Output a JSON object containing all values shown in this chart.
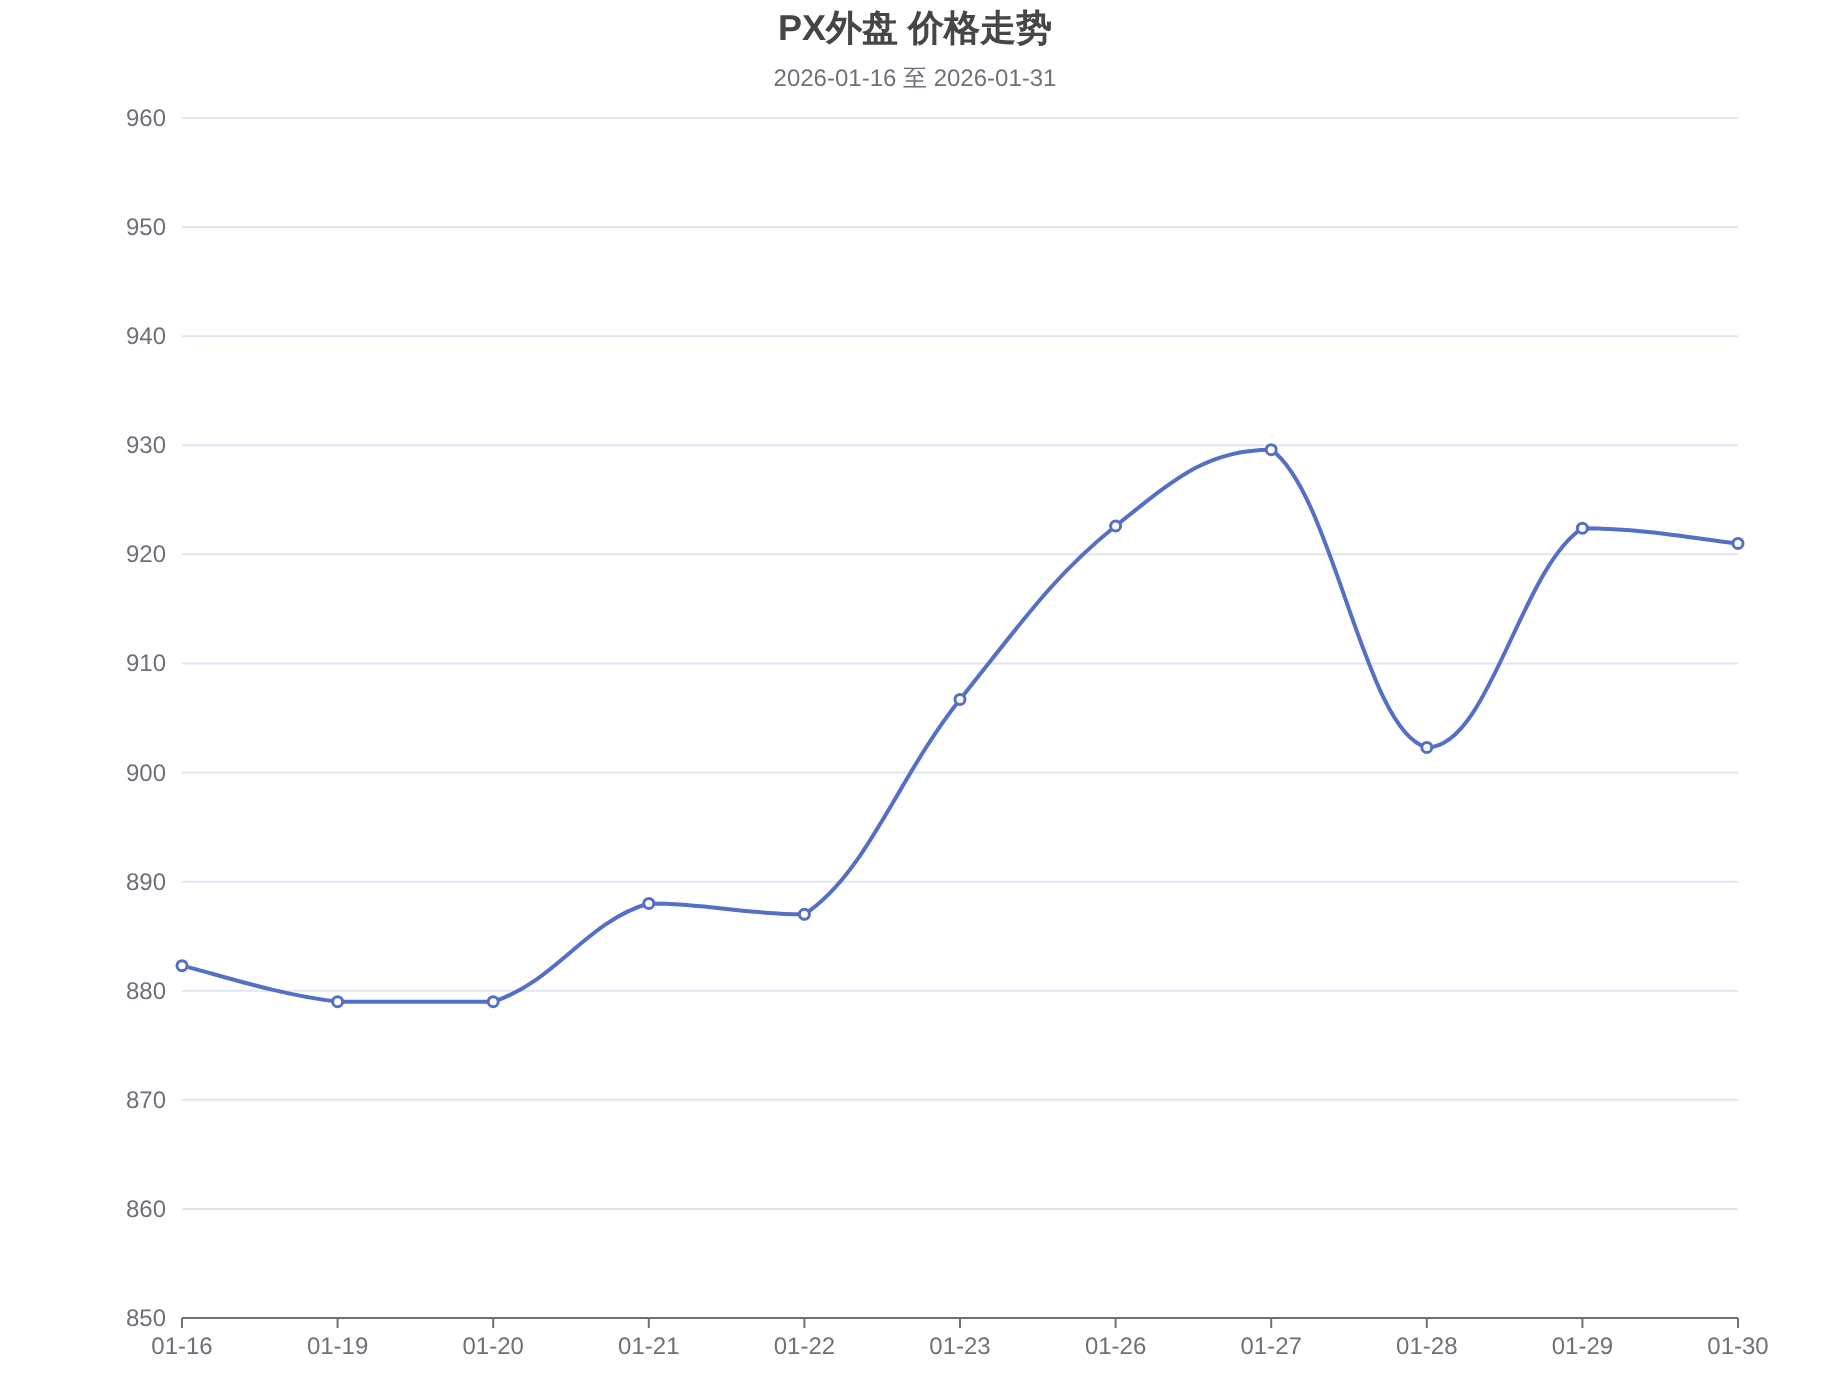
{
  "chart_data": {
    "type": "line",
    "title": "PX外盘 价格走势",
    "subtitle": "2026-01-16 至 2026-01-31",
    "categories": [
      "01-16",
      "01-19",
      "01-20",
      "01-21",
      "01-22",
      "01-23",
      "01-26",
      "01-27",
      "01-28",
      "01-29",
      "01-30"
    ],
    "series": [
      {
        "color": "#5470c6",
        "values": [
          882.3,
          879.0,
          879.0,
          888.0,
          887.0,
          906.7,
          922.6,
          929.6,
          902.3,
          922.4,
          921.0
        ]
      }
    ],
    "ylim": [
      850,
      960
    ],
    "yticks": [
      850,
      860,
      870,
      880,
      890,
      900,
      910,
      920,
      930,
      940,
      950,
      960
    ],
    "grid": "y",
    "marker": "circle",
    "line_style": "solid"
  }
}
